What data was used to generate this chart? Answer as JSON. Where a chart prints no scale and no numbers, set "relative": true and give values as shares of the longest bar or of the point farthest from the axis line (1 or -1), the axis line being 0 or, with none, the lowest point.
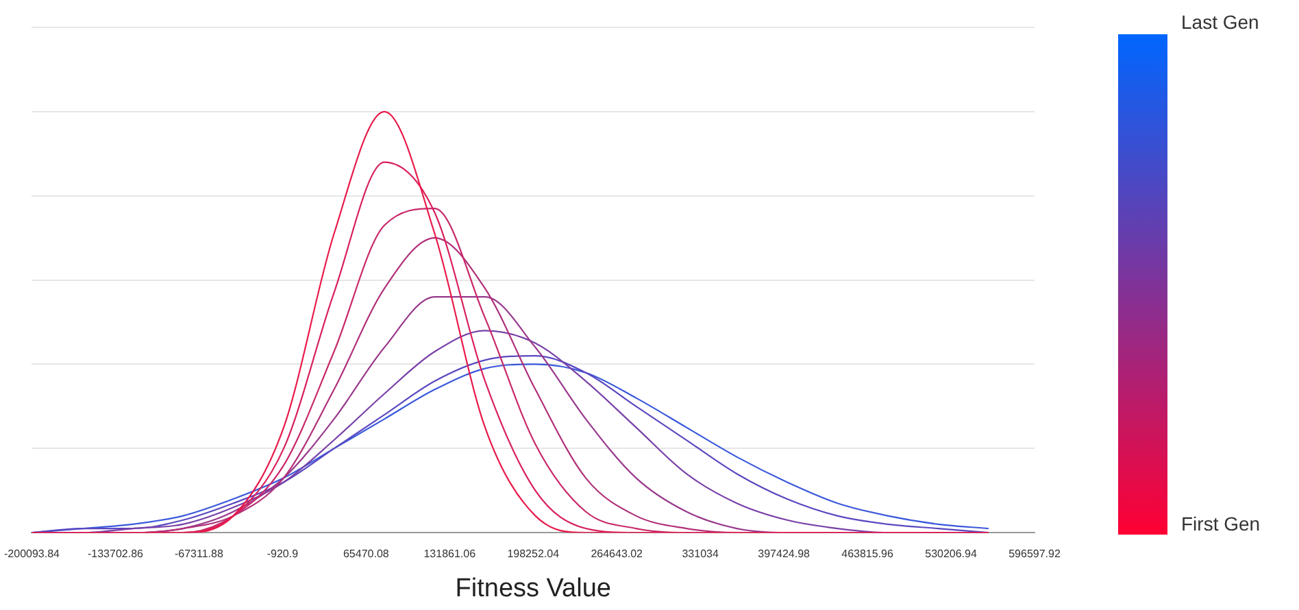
{
  "chart_data": {
    "type": "line",
    "relative": true,
    "xlabel": "Fitness Value",
    "grid": "y",
    "legend": false,
    "marker": "none",
    "line_style": "solid",
    "xlim": [
      -200093.84,
      596597.92
    ],
    "xticks": [
      -200093.84,
      -133702.86,
      -67311.88,
      -920.9,
      65470.08,
      131861.06,
      198252.04,
      264643.02,
      331034,
      397424.98,
      463815.96,
      530206.94,
      596597.92
    ],
    "x": [
      -200000,
      -160000,
      -120000,
      -80000,
      -40000,
      0,
      40000,
      80000,
      120000,
      160000,
      200000,
      240000,
      280000,
      320000,
      360000,
      400000,
      440000,
      480000,
      520000,
      560000
    ],
    "series": [
      {
        "color": "#e8194a",
        "values": [
          0,
          0,
          0,
          0,
          0.04,
          0.25,
          0.71,
          1,
          0.71,
          0.25,
          0.04,
          0,
          0,
          0,
          0,
          0,
          0,
          0,
          0,
          0
        ]
      },
      {
        "color": "#d8205a",
        "values": [
          0,
          0,
          0,
          0,
          0.04,
          0.2,
          0.57,
          0.88,
          0.76,
          0.36,
          0.1,
          0.01,
          0,
          0,
          0,
          0,
          0,
          0,
          0,
          0
        ]
      },
      {
        "color": "#c8286a",
        "values": [
          0,
          0,
          0,
          0,
          0.04,
          0.16,
          0.43,
          0.73,
          0.77,
          0.51,
          0.21,
          0.05,
          0.01,
          0,
          0,
          0,
          0,
          0,
          0,
          0
        ]
      },
      {
        "color": "#b0307a",
        "values": [
          0,
          0,
          0,
          0.01,
          0.04,
          0.13,
          0.34,
          0.58,
          0.7,
          0.58,
          0.34,
          0.13,
          0.04,
          0.01,
          0,
          0,
          0,
          0,
          0,
          0
        ]
      },
      {
        "color": "#98388c",
        "values": [
          0,
          0,
          0,
          0.01,
          0.05,
          0.13,
          0.27,
          0.44,
          0.56,
          0.56,
          0.44,
          0.27,
          0.13,
          0.05,
          0.01,
          0,
          0,
          0,
          0,
          0
        ]
      },
      {
        "color": "#7840a8",
        "values": [
          0,
          0,
          0.01,
          0.02,
          0.06,
          0.12,
          0.22,
          0.33,
          0.43,
          0.48,
          0.45,
          0.36,
          0.25,
          0.14,
          0.07,
          0.03,
          0.01,
          0,
          0,
          0
        ]
      },
      {
        "color": "#5a48c0",
        "values": [
          0,
          0.01,
          0.01,
          0.03,
          0.07,
          0.12,
          0.2,
          0.28,
          0.36,
          0.41,
          0.42,
          0.38,
          0.3,
          0.22,
          0.14,
          0.08,
          0.04,
          0.02,
          0.01,
          0
        ]
      },
      {
        "color": "#3a58dc",
        "values": [
          0,
          0.01,
          0.02,
          0.04,
          0.08,
          0.13,
          0.2,
          0.27,
          0.34,
          0.39,
          0.4,
          0.38,
          0.32,
          0.25,
          0.18,
          0.12,
          0.07,
          0.04,
          0.02,
          0.01
        ]
      }
    ],
    "annotations": [
      "Last Gen",
      "First Gen"
    ]
  }
}
